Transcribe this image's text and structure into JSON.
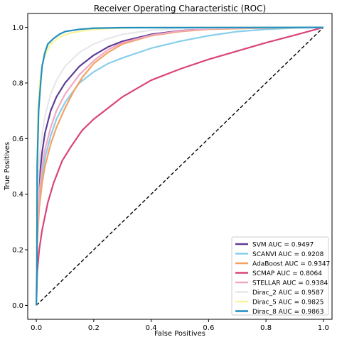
{
  "chart_data": {
    "type": "line",
    "title": "Receiver Operating Characteristic (ROC)",
    "xlabel": "False Positives",
    "ylabel": "True Positives",
    "xlim": [
      -0.03,
      1.03
    ],
    "ylim": [
      -0.05,
      1.05
    ],
    "xticks": [
      0.0,
      0.2,
      0.4,
      0.6,
      0.8,
      1.0
    ],
    "yticks": [
      0.0,
      0.2,
      0.4,
      0.6,
      0.8,
      1.0
    ],
    "xtick_labels": [
      "0.0",
      "0.2",
      "0.4",
      "0.6",
      "0.8",
      "1.0"
    ],
    "ytick_labels": [
      "0.0",
      "0.2",
      "0.4",
      "0.6",
      "0.8",
      "1.0"
    ],
    "grid": false,
    "legend_position": "lower-right",
    "diagonal": {
      "style": "dashed",
      "color": "#000000",
      "points": [
        [
          0,
          0
        ],
        [
          1,
          1
        ]
      ]
    },
    "series": [
      {
        "name": "SVM AUC = 0.9497",
        "color": "#5c3d96",
        "points": [
          [
            0,
            0
          ],
          [
            0.003,
            0.3
          ],
          [
            0.01,
            0.45
          ],
          [
            0.02,
            0.55
          ],
          [
            0.03,
            0.62
          ],
          [
            0.05,
            0.7
          ],
          [
            0.07,
            0.75
          ],
          [
            0.1,
            0.8
          ],
          [
            0.15,
            0.86
          ],
          [
            0.2,
            0.9
          ],
          [
            0.25,
            0.93
          ],
          [
            0.3,
            0.95
          ],
          [
            0.4,
            0.975
          ],
          [
            0.5,
            0.988
          ],
          [
            0.6,
            0.995
          ],
          [
            0.8,
            0.999
          ],
          [
            1,
            1
          ]
        ]
      },
      {
        "name": "SCANVI AUC = 0.9208",
        "color": "#87ceeb",
        "points": [
          [
            0,
            0
          ],
          [
            0.003,
            0.25
          ],
          [
            0.01,
            0.38
          ],
          [
            0.02,
            0.47
          ],
          [
            0.03,
            0.53
          ],
          [
            0.05,
            0.61
          ],
          [
            0.07,
            0.67
          ],
          [
            0.1,
            0.73
          ],
          [
            0.15,
            0.8
          ],
          [
            0.2,
            0.84
          ],
          [
            0.25,
            0.87
          ],
          [
            0.3,
            0.89
          ],
          [
            0.4,
            0.925
          ],
          [
            0.5,
            0.95
          ],
          [
            0.6,
            0.97
          ],
          [
            0.7,
            0.985
          ],
          [
            0.8,
            0.993
          ],
          [
            0.9,
            0.998
          ],
          [
            1,
            1
          ]
        ]
      },
      {
        "name": "AdaBoost AUC = 0.9347",
        "color": "#f4a261",
        "points": [
          [
            0,
            0
          ],
          [
            0.003,
            0.22
          ],
          [
            0.01,
            0.35
          ],
          [
            0.02,
            0.44
          ],
          [
            0.03,
            0.5
          ],
          [
            0.05,
            0.58
          ],
          [
            0.07,
            0.64
          ],
          [
            0.1,
            0.71
          ],
          [
            0.13,
            0.77
          ],
          [
            0.16,
            0.82
          ],
          [
            0.2,
            0.87
          ],
          [
            0.25,
            0.91
          ],
          [
            0.3,
            0.94
          ],
          [
            0.4,
            0.97
          ],
          [
            0.5,
            0.985
          ],
          [
            0.6,
            0.993
          ],
          [
            0.8,
            0.998
          ],
          [
            1,
            1
          ]
        ]
      },
      {
        "name": "SCMAP AUC = 0.8064",
        "color": "#d9447a",
        "points": [
          [
            0,
            0
          ],
          [
            0.003,
            0.12
          ],
          [
            0.01,
            0.2
          ],
          [
            0.02,
            0.27
          ],
          [
            0.04,
            0.37
          ],
          [
            0.06,
            0.44
          ],
          [
            0.09,
            0.52
          ],
          [
            0.12,
            0.57
          ],
          [
            0.16,
            0.63
          ],
          [
            0.2,
            0.67
          ],
          [
            0.25,
            0.71
          ],
          [
            0.3,
            0.75
          ],
          [
            0.35,
            0.78
          ],
          [
            0.4,
            0.81
          ],
          [
            0.5,
            0.85
          ],
          [
            0.6,
            0.885
          ],
          [
            0.7,
            0.915
          ],
          [
            0.8,
            0.945
          ],
          [
            0.9,
            0.972
          ],
          [
            1,
            1
          ]
        ]
      },
      {
        "name": "STELLAR AUC = 0.9384",
        "color": "#f2a7c3",
        "points": [
          [
            0,
            0
          ],
          [
            0.003,
            0.26
          ],
          [
            0.01,
            0.4
          ],
          [
            0.02,
            0.5
          ],
          [
            0.03,
            0.56
          ],
          [
            0.05,
            0.64
          ],
          [
            0.07,
            0.7
          ],
          [
            0.1,
            0.76
          ],
          [
            0.15,
            0.83
          ],
          [
            0.2,
            0.88
          ],
          [
            0.25,
            0.92
          ],
          [
            0.3,
            0.945
          ],
          [
            0.4,
            0.972
          ],
          [
            0.5,
            0.987
          ],
          [
            0.6,
            0.995
          ],
          [
            0.8,
            0.999
          ],
          [
            1,
            1
          ]
        ]
      },
      {
        "name": "Dirac_2 AUC = 0.9587",
        "color": "#e8e8ec",
        "points": [
          [
            0,
            0
          ],
          [
            0.003,
            0.35
          ],
          [
            0.01,
            0.52
          ],
          [
            0.02,
            0.62
          ],
          [
            0.03,
            0.68
          ],
          [
            0.05,
            0.76
          ],
          [
            0.07,
            0.81
          ],
          [
            0.1,
            0.86
          ],
          [
            0.15,
            0.91
          ],
          [
            0.2,
            0.94
          ],
          [
            0.25,
            0.96
          ],
          [
            0.3,
            0.975
          ],
          [
            0.4,
            0.99
          ],
          [
            0.5,
            0.996
          ],
          [
            0.7,
            0.999
          ],
          [
            1,
            1
          ]
        ]
      },
      {
        "name": "Dirac_5 AUC = 0.9825",
        "color": "#f7f59a",
        "points": [
          [
            0,
            0
          ],
          [
            0.002,
            0.5
          ],
          [
            0.006,
            0.7
          ],
          [
            0.012,
            0.8
          ],
          [
            0.02,
            0.86
          ],
          [
            0.03,
            0.9
          ],
          [
            0.05,
            0.94
          ],
          [
            0.08,
            0.965
          ],
          [
            0.12,
            0.98
          ],
          [
            0.18,
            0.99
          ],
          [
            0.25,
            0.996
          ],
          [
            0.35,
            0.999
          ],
          [
            1,
            1
          ]
        ]
      },
      {
        "name": "Dirac_8 AUC = 0.9863",
        "color": "#1f8fbf",
        "points": [
          [
            0,
            0
          ],
          [
            0.002,
            0.12
          ],
          [
            0.003,
            0.5
          ],
          [
            0.008,
            0.7
          ],
          [
            0.015,
            0.8
          ],
          [
            0.02,
            0.86
          ],
          [
            0.03,
            0.91
          ],
          [
            0.04,
            0.94
          ],
          [
            0.06,
            0.96
          ],
          [
            0.08,
            0.975
          ],
          [
            0.1,
            0.985
          ],
          [
            0.15,
            0.993
          ],
          [
            0.2,
            0.997
          ],
          [
            0.3,
            0.999
          ],
          [
            1,
            1
          ]
        ]
      }
    ]
  }
}
